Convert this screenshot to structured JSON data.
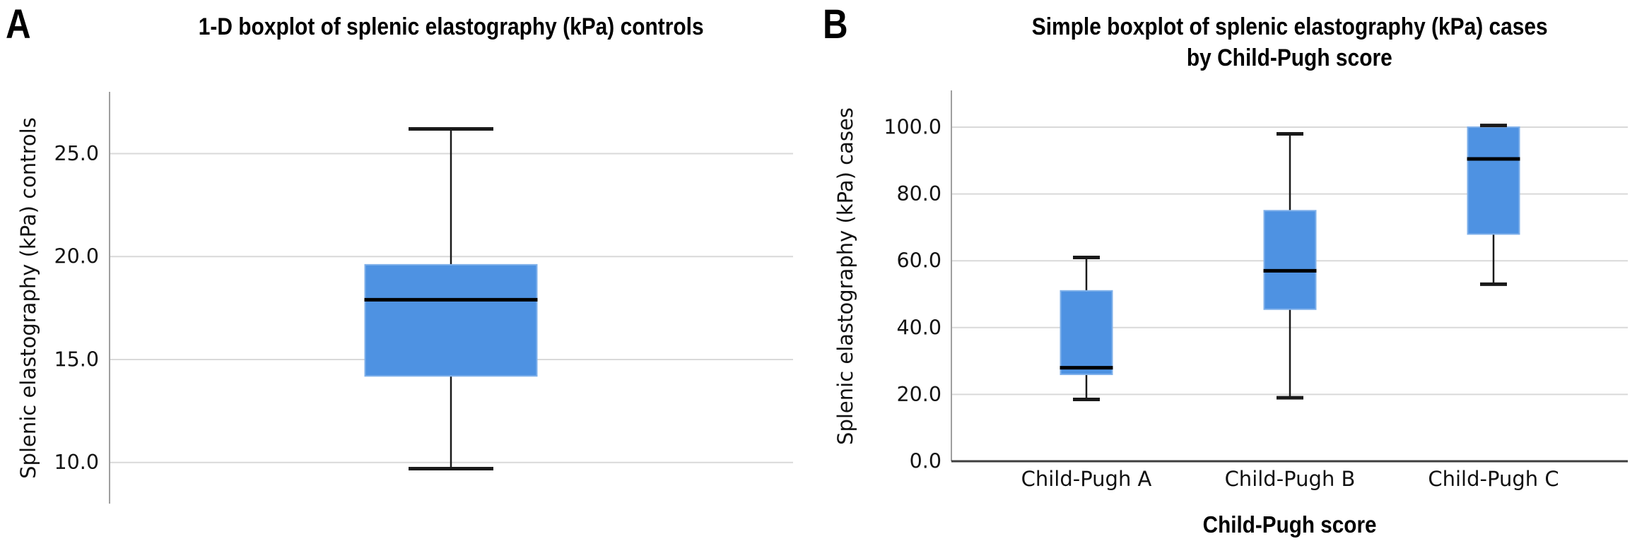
{
  "colors": {
    "box_fill": "#4e92e2",
    "box_border": "#7fb0ea",
    "median": "#000000",
    "whisker": "#1a1a1a",
    "gridline": "#d9d9d9",
    "axis": "#9f9f9f",
    "baseline": "#3f3f3f",
    "tick_text": "#131313"
  },
  "chart_data": [
    {
      "type": "boxplot",
      "panel_label": "A",
      "title": "1-D boxplot of splenic elastography (kPa) controls",
      "title_lines": [
        "1-D boxplot of splenic elastography (kPa) controls"
      ],
      "ylabel": "Splenic elastography (kPa) controls",
      "xlabel": "",
      "categories": [
        ""
      ],
      "series": [
        {
          "name": "controls",
          "min": 9.7,
          "q1": 14.2,
          "median": 17.9,
          "q3": 19.6,
          "max": 26.2
        }
      ],
      "yticks": [
        10.0,
        15.0,
        20.0,
        25.0
      ],
      "ylim": [
        8,
        28
      ],
      "grid": true,
      "legend": false
    },
    {
      "type": "boxplot",
      "panel_label": "B",
      "title": "Simple boxplot of splenic elastography (kPa) cases by Child-Pugh score",
      "title_lines": [
        "Simple boxplot of splenic elastography (kPa) cases",
        "by Child-Pugh score"
      ],
      "ylabel": "Splenic elastography (kPa) cases",
      "xlabel": "Child-Pugh score",
      "categories": [
        "Child-Pugh A",
        "Child-Pugh B",
        "Child-Pugh C"
      ],
      "series": [
        {
          "name": "Child-Pugh A",
          "min": 18.5,
          "q1": 26.0,
          "median": 28.0,
          "q3": 51.0,
          "max": 61.0
        },
        {
          "name": "Child-Pugh B",
          "min": 19.0,
          "q1": 45.5,
          "median": 57.0,
          "q3": 75.0,
          "max": 98.0
        },
        {
          "name": "Child-Pugh C",
          "min": 53.0,
          "q1": 68.0,
          "median": 90.5,
          "q3": 100.0,
          "max": 100.5
        }
      ],
      "yticks": [
        0.0,
        20.0,
        40.0,
        60.0,
        80.0,
        100.0
      ],
      "ylim": [
        0,
        111
      ],
      "grid": true,
      "legend": false
    }
  ]
}
